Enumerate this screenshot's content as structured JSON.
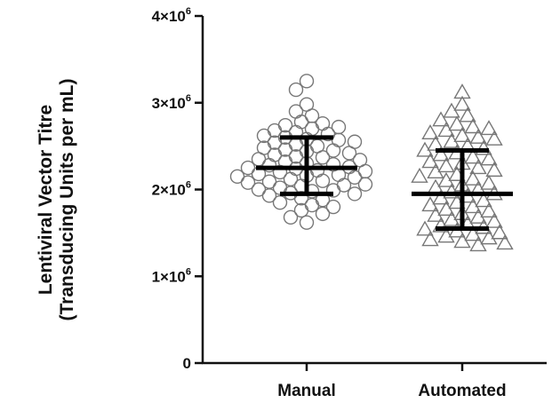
{
  "chart_data": {
    "type": "scatter",
    "ylabel_line1": "Lentiviral Vector Titre",
    "ylabel_line2": "(Transducing Units per mL)",
    "xlabel": "",
    "ylim": [
      0,
      4000000
    ],
    "yticks": [
      {
        "value": 0,
        "label": "0",
        "sup": ""
      },
      {
        "value": 1000000,
        "label": "1×10",
        "sup": "6"
      },
      {
        "value": 2000000,
        "label": "2×10",
        "sup": "6"
      },
      {
        "value": 3000000,
        "label": "3×10",
        "sup": "6"
      },
      {
        "value": 4000000,
        "label": "4×10",
        "sup": "6"
      }
    ],
    "categories": [
      "Manual",
      "Automated"
    ],
    "series": [
      {
        "marker": "circle",
        "mean": 2250000,
        "sd_low": 1950000,
        "sd_high": 2600000,
        "values": [
          3250000,
          3150000,
          2980000,
          2900000,
          2850000,
          2780000,
          2760000,
          2740000,
          2720000,
          2700000,
          2680000,
          2660000,
          2640000,
          2620000,
          2600000,
          2580000,
          2570000,
          2550000,
          2540000,
          2520000,
          2500000,
          2480000,
          2460000,
          2450000,
          2440000,
          2420000,
          2400000,
          2380000,
          2370000,
          2350000,
          2340000,
          2320000,
          2300000,
          2290000,
          2280000,
          2260000,
          2250000,
          2240000,
          2220000,
          2210000,
          2200000,
          2180000,
          2170000,
          2160000,
          2150000,
          2140000,
          2120000,
          2100000,
          2090000,
          2080000,
          2060000,
          2050000,
          2040000,
          2020000,
          2000000,
          1990000,
          1980000,
          1960000,
          1950000,
          1930000,
          1900000,
          1880000,
          1850000,
          1820000,
          1800000,
          1760000,
          1720000,
          1680000,
          1620000
        ]
      },
      {
        "marker": "triangle",
        "mean": 1950000,
        "sd_low": 1550000,
        "sd_high": 2450000,
        "values": [
          3120000,
          2980000,
          2900000,
          2850000,
          2800000,
          2750000,
          2720000,
          2700000,
          2680000,
          2650000,
          2620000,
          2600000,
          2580000,
          2550000,
          2520000,
          2500000,
          2470000,
          2450000,
          2420000,
          2400000,
          2370000,
          2350000,
          2320000,
          2300000,
          2270000,
          2250000,
          2220000,
          2200000,
          2170000,
          2150000,
          2120000,
          2100000,
          2070000,
          2050000,
          2020000,
          2000000,
          1970000,
          1950000,
          1920000,
          1900000,
          1870000,
          1850000,
          1820000,
          1800000,
          1770000,
          1750000,
          1720000,
          1700000,
          1680000,
          1650000,
          1630000,
          1600000,
          1580000,
          1560000,
          1540000,
          1520000,
          1500000,
          1480000,
          1460000,
          1440000,
          1420000,
          1400000,
          1380000,
          1360000
        ]
      }
    ]
  }
}
